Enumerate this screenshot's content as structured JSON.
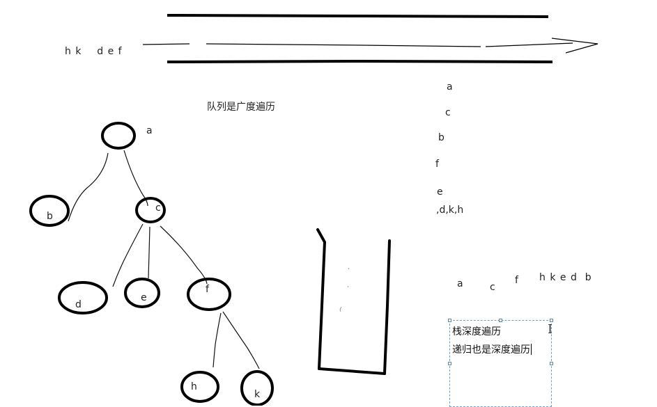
{
  "queue": {
    "contents": "h k    d e f",
    "caption": "队列是广度遍历"
  },
  "tree": {
    "nodes": [
      {
        "id": "a",
        "label": "",
        "outer_label": "a"
      },
      {
        "id": "b",
        "label": "b",
        "outer_label": ""
      },
      {
        "id": "c",
        "label": "c",
        "outer_label": ""
      },
      {
        "id": "d",
        "label": "d",
        "outer_label": ""
      },
      {
        "id": "e",
        "label": "e",
        "outer_label": ""
      },
      {
        "id": "f",
        "label": "f",
        "outer_label": ""
      },
      {
        "id": "h",
        "label": "h",
        "outer_label": ""
      },
      {
        "id": "k",
        "label": "k",
        "outer_label": ""
      }
    ],
    "edges": [
      [
        "a",
        "b"
      ],
      [
        "a",
        "c"
      ],
      [
        "c",
        "d"
      ],
      [
        "c",
        "e"
      ],
      [
        "c",
        "f"
      ],
      [
        "f",
        "h"
      ],
      [
        "f",
        "k"
      ]
    ]
  },
  "stack_trace": {
    "steps": [
      "a",
      "c",
      "b",
      "f",
      "e",
      ",d,k,h"
    ]
  },
  "dfs_sequence": {
    "items": [
      "a",
      "c",
      "f",
      "h k e d  b"
    ]
  },
  "textbox": {
    "line1": "栈深度遍历",
    "line2": "递归也是深度遍历"
  },
  "colors": {
    "ink": "#000000",
    "selection_border": "#6f9fc6"
  }
}
